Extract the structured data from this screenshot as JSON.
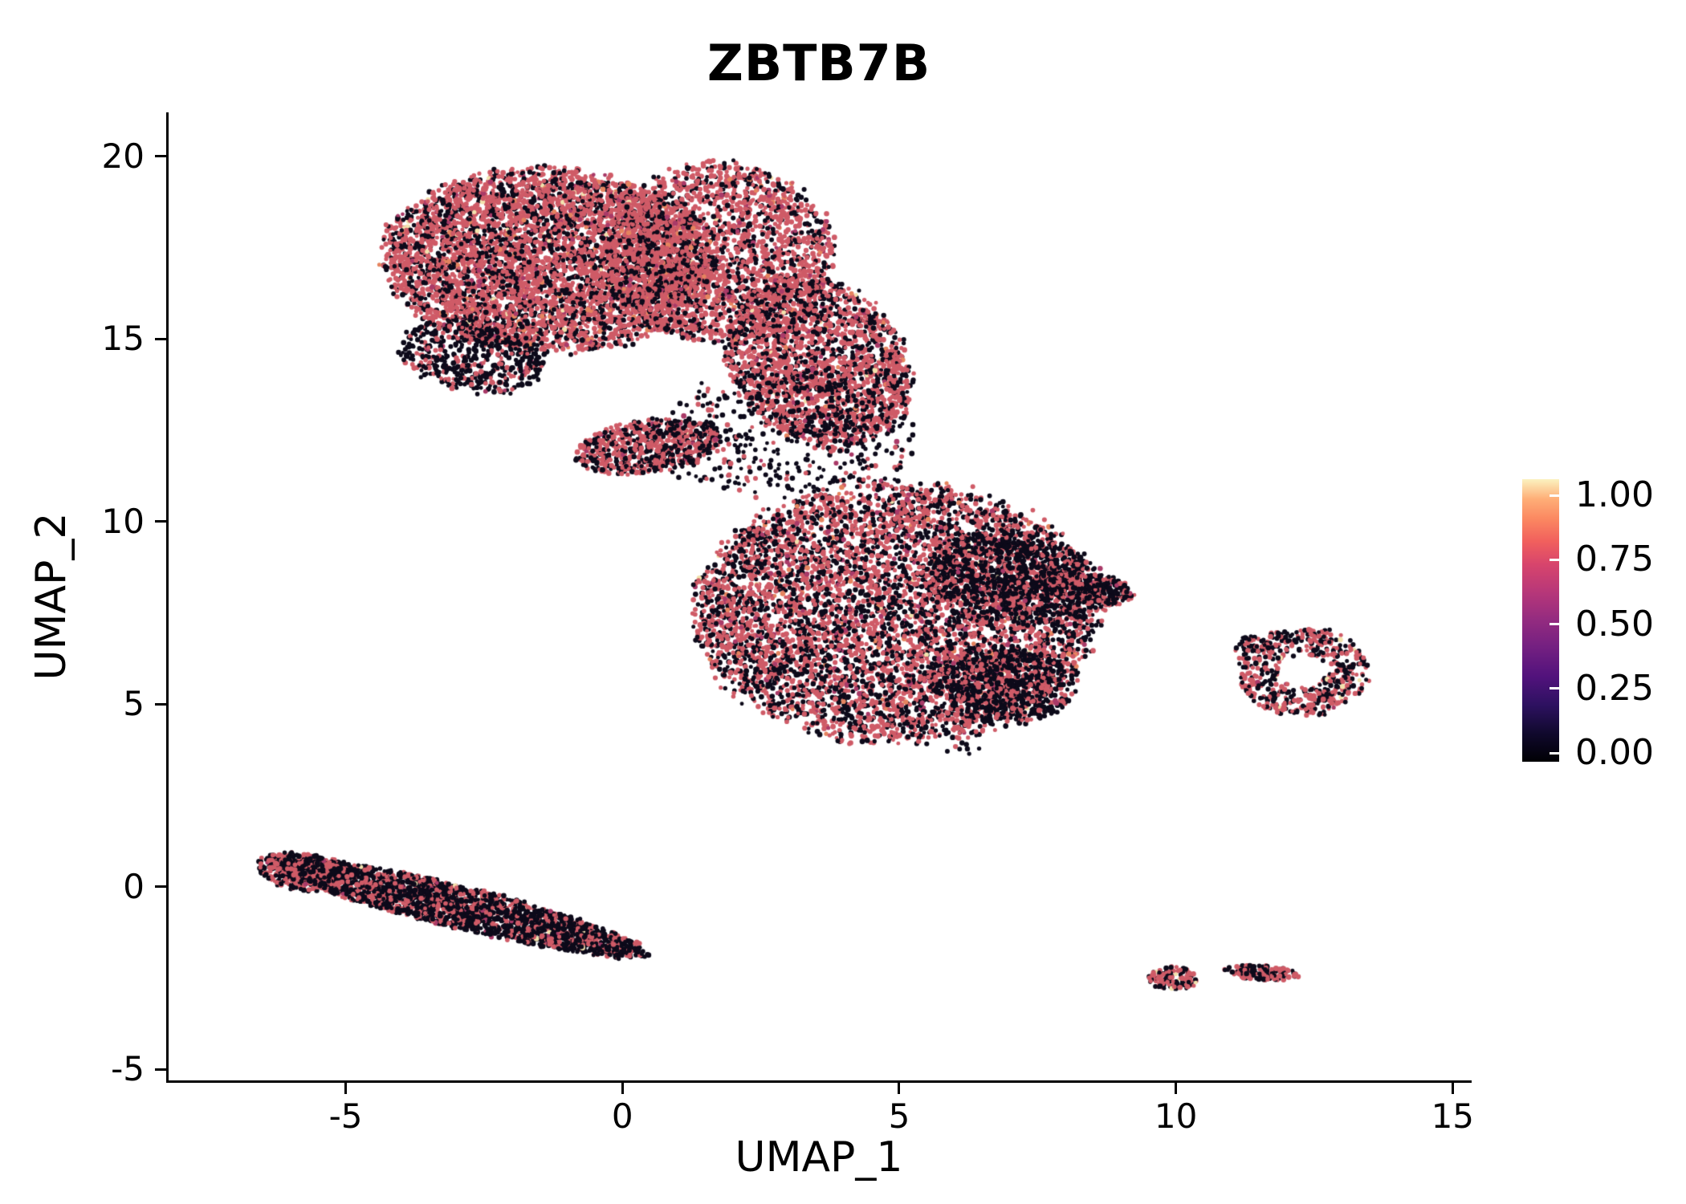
{
  "chart_data": {
    "type": "scatter",
    "title": "ZBTB7B",
    "xlabel": "UMAP_1",
    "ylabel": "UMAP_2",
    "xlim": [
      -8.2,
      15.3
    ],
    "ylim": [
      -5.3,
      21.2
    ],
    "xticks": [
      -5,
      0,
      5,
      10,
      15
    ],
    "xtick_labels": [
      "-5",
      "0",
      "5",
      "10",
      "15"
    ],
    "yticks": [
      -5,
      0,
      5,
      10,
      15,
      20
    ],
    "ytick_labels": [
      "-5",
      "0",
      "5",
      "10",
      "15",
      "20"
    ],
    "grid": false,
    "legend_position": "right",
    "axis_color": "#000000",
    "background": "#ffffff",
    "colorbar": {
      "colormap": "magma",
      "tick_labels": [
        "1.00",
        "0.75",
        "0.50",
        "0.25",
        "0.00"
      ],
      "tick_values": [
        1.0,
        0.75,
        0.5,
        0.25,
        0.0
      ],
      "gradient_stops": [
        {
          "pos": 0.0,
          "color": "#000004"
        },
        {
          "pos": 0.1,
          "color": "#10092d"
        },
        {
          "pos": 0.2,
          "color": "#2d1160"
        },
        {
          "pos": 0.3,
          "color": "#51127c"
        },
        {
          "pos": 0.4,
          "color": "#721f81"
        },
        {
          "pos": 0.5,
          "color": "#932b80"
        },
        {
          "pos": 0.6,
          "color": "#b73779"
        },
        {
          "pos": 0.7,
          "color": "#d8456c"
        },
        {
          "pos": 0.78,
          "color": "#f1605d"
        },
        {
          "pos": 0.86,
          "color": "#fb8861"
        },
        {
          "pos": 0.93,
          "color": "#feae77"
        },
        {
          "pos": 1.0,
          "color": "#fbf2bf"
        }
      ]
    },
    "point_palette": {
      "low": "#0d0a1a",
      "mid_dark": "#a93a68",
      "mid": "#cf5b67",
      "mid_hi": "#e5845f",
      "high": "#f3e3ae"
    },
    "seed": 42,
    "point_radius_px": 2.9,
    "clusters": [
      {
        "name": "top-left-lobe",
        "cx": -1.35,
        "cy": 17.15,
        "rx": 2.95,
        "ry": 2.45,
        "rot": -8,
        "n": 5200,
        "mix": {
          "mid": 0.64,
          "low": 0.3,
          "mid_dark": 0.03,
          "mid_hi": 0.02,
          "high": 0.01
        }
      },
      {
        "name": "top-mid-lobe",
        "cx": 1.75,
        "cy": 17.35,
        "rx": 2.05,
        "ry": 2.45,
        "rot": 0,
        "n": 2300,
        "mix": {
          "mid": 0.67,
          "low": 0.28,
          "mid_dark": 0.03,
          "mid_hi": 0.015,
          "high": 0.005
        }
      },
      {
        "name": "top-right-lobe",
        "cx": 3.55,
        "cy": 14.35,
        "rx": 1.6,
        "ry": 2.35,
        "rot": 14,
        "n": 2100,
        "mix": {
          "mid": 0.62,
          "low": 0.34,
          "mid_dark": 0.025,
          "mid_hi": 0.01,
          "high": 0.005
        }
      },
      {
        "name": "top-edge-dark",
        "cx": -2.7,
        "cy": 14.5,
        "rx": 1.35,
        "ry": 0.95,
        "rot": -22,
        "n": 520,
        "mix": {
          "low": 0.72,
          "mid": 0.26,
          "mid_dark": 0.02
        }
      },
      {
        "name": "isthmus-strip",
        "cx": 0.45,
        "cy": 12.05,
        "rx": 1.35,
        "ry": 0.7,
        "rot": 14,
        "n": 700,
        "mix": {
          "mid": 0.58,
          "low": 0.39,
          "mid_dark": 0.02,
          "high": 0.01
        }
      },
      {
        "name": "isthmus-scatter",
        "cx": 2.9,
        "cy": 12.35,
        "rx": 2.45,
        "ry": 1.7,
        "rot": 0,
        "n": 450,
        "mix": {
          "low": 0.78,
          "mid": 0.2,
          "mid_dark": 0.02
        }
      },
      {
        "name": "center-main",
        "cx": 4.95,
        "cy": 7.5,
        "rx": 3.6,
        "ry": 3.5,
        "rot": 0,
        "n": 6300,
        "mix": {
          "mid": 0.52,
          "low": 0.43,
          "mid_dark": 0.03,
          "mid_hi": 0.015,
          "high": 0.005
        }
      },
      {
        "name": "center-dark-upper",
        "cx": 7.15,
        "cy": 8.45,
        "rx": 1.65,
        "ry": 1.2,
        "rot": -25,
        "n": 900,
        "mix": {
          "low": 0.79,
          "mid": 0.19,
          "mid_dark": 0.02
        }
      },
      {
        "name": "center-dark-lower",
        "cx": 6.9,
        "cy": 5.5,
        "rx": 1.25,
        "ry": 1.05,
        "rot": 0,
        "n": 620,
        "mix": {
          "low": 0.75,
          "mid": 0.23,
          "mid_dark": 0.02
        }
      },
      {
        "name": "center-right-tip",
        "cx": 8.45,
        "cy": 8.15,
        "rx": 0.8,
        "ry": 0.42,
        "rot": -14,
        "n": 280,
        "mix": {
          "low": 0.6,
          "mid": 0.38,
          "mid_dark": 0.02
        }
      },
      {
        "name": "right-ring",
        "cx": 12.3,
        "cy": 5.9,
        "rx": 1.15,
        "ry": 1.2,
        "rot": 0,
        "n": 540,
        "inner": 0.38,
        "mix": {
          "mid": 0.49,
          "low": 0.47,
          "mid_dark": 0.02,
          "high": 0.02
        }
      },
      {
        "name": "right-ring-spur",
        "cx": 11.35,
        "cy": 6.6,
        "rx": 0.32,
        "ry": 0.26,
        "rot": 0,
        "n": 45,
        "mix": {
          "low": 0.6,
          "mid": 0.4
        }
      },
      {
        "name": "bottom-band",
        "cx": -2.98,
        "cy": -0.55,
        "rx": 3.6,
        "ry": 0.56,
        "rot": -20.6,
        "n": 2600,
        "mix": {
          "low": 0.7,
          "mid": 0.28,
          "mid_dark": 0.015,
          "high": 0.005
        }
      },
      {
        "name": "bottom-band-tip",
        "cx": -5.8,
        "cy": 0.42,
        "rx": 0.8,
        "ry": 0.5,
        "rot": -16,
        "n": 380,
        "mix": {
          "low": 0.6,
          "mid": 0.38,
          "mid_dark": 0.02
        }
      },
      {
        "name": "small-island-left",
        "cx": 9.95,
        "cy": -2.5,
        "rx": 0.45,
        "ry": 0.32,
        "rot": 0,
        "n": 120,
        "mix": {
          "low": 0.52,
          "mid": 0.44,
          "high": 0.04
        }
      },
      {
        "name": "small-island-right",
        "cx": 11.55,
        "cy": -2.35,
        "rx": 0.68,
        "ry": 0.2,
        "rot": -6,
        "n": 140,
        "mix": {
          "mid": 0.5,
          "low": 0.5
        }
      },
      {
        "name": "stray-below-center",
        "cx": 6.15,
        "cy": 3.8,
        "rx": 0.35,
        "ry": 0.18,
        "rot": 0,
        "n": 8,
        "mix": {
          "low": 0.9,
          "mid": 0.1
        }
      }
    ]
  }
}
